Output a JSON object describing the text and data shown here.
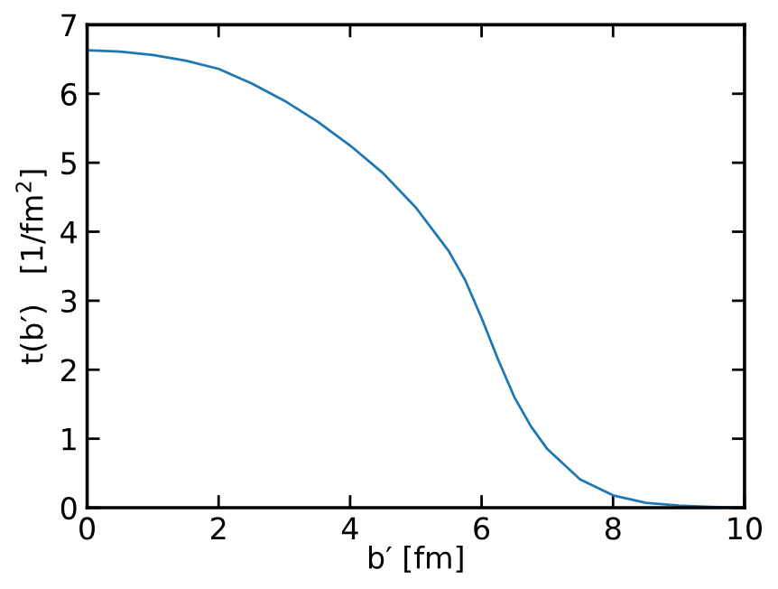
{
  "chart_data": {
    "type": "line",
    "xlabel": "b′ [fm]",
    "ylabel": "t(b′)   [1/fm$^{2}$]",
    "x": [
      0,
      0.5,
      1,
      1.5,
      2,
      2.5,
      3,
      3.5,
      4,
      4.5,
      5,
      5.5,
      5.75,
      6,
      6.25,
      6.5,
      6.75,
      7,
      7.5,
      8,
      8.5,
      9,
      9.5,
      10
    ],
    "series": [
      {
        "color": "#1f77b4",
        "values": [
          6.63,
          6.61,
          6.56,
          6.48,
          6.36,
          6.15,
          5.9,
          5.6,
          5.25,
          4.85,
          4.35,
          3.72,
          3.3,
          2.75,
          2.15,
          1.6,
          1.18,
          0.85,
          0.41,
          0.18,
          0.07,
          0.03,
          0.01,
          0.0
        ]
      }
    ],
    "xlim": [
      0,
      10
    ],
    "ylim": [
      0,
      7
    ],
    "xticks": [
      0,
      2,
      4,
      6,
      8,
      10
    ],
    "yticks": [
      0,
      1,
      2,
      3,
      4,
      5,
      6,
      7
    ],
    "grid": false,
    "marker": "none",
    "line_style": "solid"
  }
}
